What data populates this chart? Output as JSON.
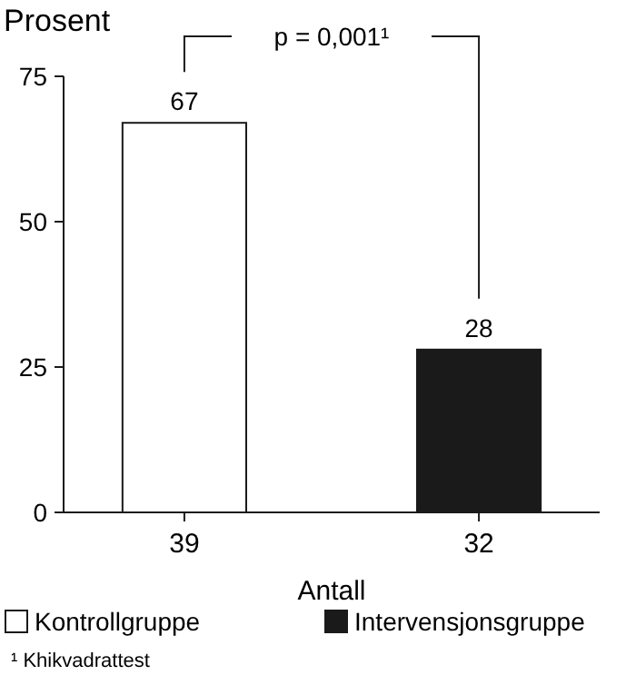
{
  "chart_data": {
    "type": "bar",
    "ylabel": "Prosent",
    "xlabel": "Antall",
    "categories": [
      "39",
      "32"
    ],
    "series": [
      {
        "name": "Kontrollgruppe",
        "color": "#ffffff",
        "values": [
          67,
          null
        ]
      },
      {
        "name": "Intervensjonsgruppe",
        "color": "#1a1a1a",
        "values": [
          null,
          28
        ]
      }
    ],
    "ylim": [
      0,
      75
    ],
    "yticks": [
      0,
      25,
      50,
      75
    ],
    "data_labels": true,
    "legend": "bottom",
    "annotations": [
      "p = 0,001¹",
      "¹ Khikvadrattest"
    ]
  }
}
